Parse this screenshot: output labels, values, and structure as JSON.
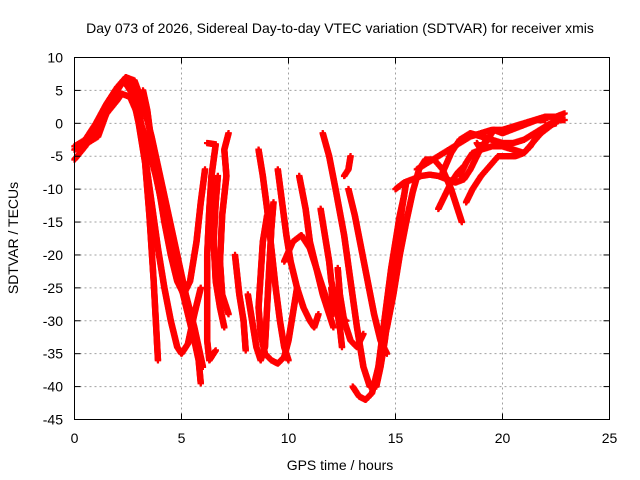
{
  "chart_data": {
    "type": "scatter",
    "title": "Day 073 of 2026, Sidereal Day-to-day VTEC variation (SDTVAR) for receiver xmis",
    "xlabel": "GPS time / hours",
    "ylabel": "SDTVAR / TECUs",
    "xlim": [
      0,
      25
    ],
    "ylim": [
      -45,
      10
    ],
    "xticks": [
      0,
      5,
      10,
      15,
      20,
      25
    ],
    "yticks": [
      -45,
      -40,
      -35,
      -30,
      -25,
      -20,
      -15,
      -10,
      -5,
      0,
      5,
      10
    ],
    "grid": true,
    "marker": "plus",
    "color": "#ff0000",
    "series": [
      {
        "points": [
          [
            0.0,
            -3.5
          ],
          [
            0.5,
            -2.5
          ],
          [
            1.0,
            0.0
          ],
          [
            1.5,
            3.0
          ],
          [
            2.0,
            5.5
          ],
          [
            2.4,
            7.0
          ],
          [
            2.8,
            6.5
          ],
          [
            3.2,
            3.0
          ],
          [
            3.6,
            -2.0
          ],
          [
            4.0,
            -8.0
          ],
          [
            4.4,
            -14.0
          ],
          [
            4.8,
            -20.0
          ],
          [
            5.2,
            -26.0
          ],
          [
            5.6,
            -31.0
          ],
          [
            5.8,
            -34.0
          ],
          [
            6.0,
            -37.0
          ]
        ]
      },
      {
        "points": [
          [
            0.0,
            -5.5
          ],
          [
            0.5,
            -3.5
          ],
          [
            1.0,
            -1.0
          ],
          [
            1.5,
            1.5
          ],
          [
            2.0,
            3.5
          ],
          [
            2.2,
            4.5
          ],
          [
            2.6,
            4.0
          ],
          [
            3.0,
            1.0
          ],
          [
            3.4,
            -3.0
          ],
          [
            3.8,
            -8.0
          ],
          [
            4.2,
            -14.0
          ],
          [
            4.6,
            -20.0
          ],
          [
            5.0,
            -25.0
          ],
          [
            5.3,
            -29.0
          ],
          [
            5.6,
            -33.0
          ],
          [
            5.8,
            -36.0
          ],
          [
            5.9,
            -39.5
          ]
        ]
      },
      {
        "points": [
          [
            0.0,
            -4.0
          ],
          [
            0.6,
            -3.0
          ],
          [
            1.1,
            -2.0
          ],
          [
            1.6,
            2.5
          ],
          [
            2.0,
            5.0
          ],
          [
            2.3,
            6.5
          ],
          [
            2.7,
            4.5
          ],
          [
            3.0,
            0.0
          ],
          [
            3.3,
            -6.0
          ],
          [
            3.5,
            -14.0
          ],
          [
            3.7,
            -24.0
          ],
          [
            3.8,
            -30.0
          ],
          [
            3.9,
            -36.0
          ]
        ]
      },
      {
        "points": [
          [
            2.6,
            6.5
          ],
          [
            2.9,
            5.0
          ],
          [
            3.1,
            0.0
          ],
          [
            3.3,
            -5.0
          ],
          [
            3.6,
            -12.0
          ],
          [
            3.9,
            -19.0
          ],
          [
            4.2,
            -25.0
          ],
          [
            4.5,
            -30.0
          ],
          [
            4.8,
            -34.0
          ],
          [
            5.0,
            -35.0
          ],
          [
            5.3,
            -33.5
          ],
          [
            5.6,
            -29.0
          ],
          [
            5.9,
            -25.0
          ]
        ]
      },
      {
        "points": [
          [
            3.2,
            5.0
          ],
          [
            3.4,
            2.0
          ],
          [
            3.6,
            -3.0
          ],
          [
            3.9,
            -9.0
          ],
          [
            4.2,
            -15.0
          ],
          [
            4.5,
            -20.0
          ],
          [
            4.8,
            -24.0
          ],
          [
            5.1,
            -26.0
          ],
          [
            5.4,
            -24.0
          ],
          [
            5.7,
            -18.0
          ],
          [
            5.9,
            -12.0
          ],
          [
            6.1,
            -7.0
          ]
        ]
      },
      {
        "points": [
          [
            6.2,
            -3.0
          ],
          [
            6.6,
            -3.2
          ],
          [
            6.4,
            -8.0
          ],
          [
            6.3,
            -13.0
          ],
          [
            6.2,
            -20.0
          ],
          [
            6.2,
            -27.0
          ],
          [
            6.2,
            -33.0
          ],
          [
            6.3,
            -36.0
          ],
          [
            6.6,
            -34.5
          ]
        ]
      },
      {
        "points": [
          [
            6.7,
            -8.0
          ],
          [
            6.6,
            -12.0
          ],
          [
            6.5,
            -18.0
          ],
          [
            6.6,
            -24.0
          ],
          [
            6.8,
            -28.0
          ],
          [
            7.0,
            -31.0
          ]
        ]
      },
      {
        "points": [
          [
            7.2,
            -1.5
          ],
          [
            7.0,
            -4.0
          ],
          [
            7.1,
            -8.0
          ],
          [
            6.9,
            -14.0
          ],
          [
            6.8,
            -21.0
          ],
          [
            6.9,
            -26.0
          ],
          [
            7.2,
            -29.0
          ]
        ]
      },
      {
        "points": [
          [
            7.5,
            -20.0
          ],
          [
            7.7,
            -26.0
          ],
          [
            7.9,
            -30.0
          ],
          [
            8.0,
            -34.5
          ]
        ]
      },
      {
        "points": [
          [
            8.1,
            -26.0
          ],
          [
            8.3,
            -30.0
          ],
          [
            8.5,
            -34.0
          ],
          [
            8.7,
            -36.0
          ],
          [
            8.9,
            -34.0
          ],
          [
            9.0,
            -28.0
          ],
          [
            9.1,
            -22.0
          ],
          [
            9.2,
            -16.0
          ],
          [
            9.3,
            -12.0
          ]
        ]
      },
      {
        "points": [
          [
            9.0,
            -14.0
          ],
          [
            8.8,
            -18.0
          ],
          [
            8.7,
            -23.0
          ],
          [
            8.6,
            -28.0
          ],
          [
            8.7,
            -32.0
          ],
          [
            8.9,
            -35.0
          ],
          [
            9.2,
            -36.0
          ],
          [
            9.5,
            -36.5
          ],
          [
            9.8,
            -35.5
          ],
          [
            10.0,
            -33.0
          ],
          [
            10.2,
            -29.0
          ],
          [
            10.4,
            -25.0
          ]
        ]
      },
      {
        "points": [
          [
            8.6,
            -4.0
          ],
          [
            8.8,
            -8.0
          ],
          [
            9.0,
            -13.0
          ],
          [
            9.2,
            -19.0
          ],
          [
            9.4,
            -25.0
          ],
          [
            9.6,
            -30.0
          ],
          [
            9.8,
            -34.0
          ],
          [
            10.0,
            -36.0
          ]
        ]
      },
      {
        "points": [
          [
            9.5,
            -7.0
          ],
          [
            9.7,
            -12.0
          ],
          [
            9.9,
            -17.0
          ],
          [
            10.1,
            -21.0
          ],
          [
            10.4,
            -25.0
          ],
          [
            10.7,
            -28.0
          ],
          [
            11.0,
            -30.0
          ],
          [
            11.2,
            -31.0
          ],
          [
            11.4,
            -29.0
          ]
        ]
      },
      {
        "points": [
          [
            9.8,
            -21.0
          ],
          [
            10.2,
            -18.0
          ],
          [
            10.6,
            -17.0
          ],
          [
            11.0,
            -19.0
          ],
          [
            11.4,
            -23.0
          ],
          [
            11.8,
            -27.0
          ],
          [
            12.1,
            -29.0
          ]
        ]
      },
      {
        "points": [
          [
            10.5,
            -8.0
          ],
          [
            10.8,
            -13.0
          ],
          [
            11.0,
            -18.0
          ],
          [
            11.3,
            -22.0
          ],
          [
            11.6,
            -26.0
          ],
          [
            11.9,
            -29.0
          ],
          [
            12.1,
            -31.0
          ]
        ]
      },
      {
        "points": [
          [
            11.5,
            -13.0
          ],
          [
            11.7,
            -17.0
          ],
          [
            11.9,
            -21.0
          ],
          [
            12.0,
            -24.0
          ],
          [
            12.2,
            -27.0
          ],
          [
            12.4,
            -31.0
          ],
          [
            12.5,
            -34.0
          ]
        ]
      },
      {
        "points": [
          [
            11.6,
            -1.5
          ],
          [
            11.9,
            -5.0
          ],
          [
            12.2,
            -10.0
          ],
          [
            12.6,
            -17.0
          ],
          [
            12.9,
            -24.0
          ],
          [
            13.2,
            -31.0
          ],
          [
            13.5,
            -37.0
          ],
          [
            13.8,
            -40.0
          ],
          [
            14.1,
            -40.0
          ],
          [
            14.3,
            -37.0
          ],
          [
            14.5,
            -33.0
          ],
          [
            14.7,
            -28.0
          ],
          [
            14.9,
            -23.0
          ],
          [
            15.1,
            -18.0
          ],
          [
            15.3,
            -13.0
          ],
          [
            15.5,
            -9.0
          ]
        ]
      },
      {
        "points": [
          [
            12.8,
            -10.0
          ],
          [
            13.1,
            -14.0
          ],
          [
            13.4,
            -19.0
          ],
          [
            13.7,
            -24.0
          ],
          [
            14.0,
            -29.0
          ],
          [
            14.3,
            -33.0
          ],
          [
            14.6,
            -35.0
          ]
        ]
      },
      {
        "points": [
          [
            12.3,
            -22.0
          ],
          [
            12.4,
            -26.0
          ],
          [
            12.6,
            -30.0
          ],
          [
            12.9,
            -33.0
          ],
          [
            13.2,
            -34.0
          ],
          [
            13.5,
            -32.0
          ]
        ]
      },
      {
        "points": [
          [
            12.6,
            -8.0
          ],
          [
            12.8,
            -7.0
          ],
          [
            12.9,
            -5.0
          ]
        ]
      },
      {
        "points": [
          [
            12.0,
            -25.0
          ],
          [
            12.1,
            -28.0
          ],
          [
            12.4,
            -29.5
          ],
          [
            12.7,
            -30.0
          ]
        ]
      },
      {
        "points": [
          [
            14.3,
            -35.0
          ],
          [
            14.6,
            -31.0
          ],
          [
            14.9,
            -26.0
          ],
          [
            15.2,
            -20.0
          ],
          [
            15.5,
            -15.0
          ],
          [
            15.8,
            -10.5
          ],
          [
            16.1,
            -7.0
          ],
          [
            16.4,
            -5.5
          ],
          [
            16.8,
            -5.5
          ],
          [
            17.2,
            -7.0
          ],
          [
            17.6,
            -10.0
          ],
          [
            17.9,
            -13.0
          ],
          [
            18.1,
            -15.0
          ]
        ]
      },
      {
        "points": [
          [
            13.0,
            -40.0
          ],
          [
            13.3,
            -41.5
          ],
          [
            13.6,
            -42.0
          ],
          [
            13.9,
            -41.0
          ],
          [
            14.2,
            -37.0
          ],
          [
            14.4,
            -32.0
          ],
          [
            14.6,
            -27.0
          ],
          [
            14.8,
            -22.0
          ],
          [
            15.0,
            -18.0
          ],
          [
            15.2,
            -14.0
          ],
          [
            15.4,
            -11.0
          ]
        ]
      },
      {
        "points": [
          [
            15.0,
            -10.0
          ],
          [
            15.4,
            -9.0
          ],
          [
            15.8,
            -8.5
          ],
          [
            16.2,
            -8.0
          ],
          [
            16.6,
            -7.8
          ],
          [
            17.0,
            -8.0
          ],
          [
            17.4,
            -8.5
          ],
          [
            17.8,
            -9.0
          ],
          [
            18.2,
            -8.5
          ],
          [
            18.5,
            -7.0
          ],
          [
            18.8,
            -5.0
          ],
          [
            19.1,
            -3.0
          ]
        ]
      },
      {
        "points": [
          [
            16.0,
            -7.0
          ],
          [
            16.5,
            -6.0
          ],
          [
            17.0,
            -5.0
          ],
          [
            17.5,
            -4.0
          ],
          [
            18.0,
            -3.0
          ],
          [
            18.5,
            -2.0
          ],
          [
            19.0,
            -1.5
          ],
          [
            19.5,
            -1.0
          ],
          [
            20.0,
            -1.0
          ],
          [
            20.5,
            -0.5
          ],
          [
            21.0,
            0.0
          ],
          [
            21.5,
            0.5
          ],
          [
            22.0,
            1.0
          ],
          [
            22.5,
            1.0
          ],
          [
            22.9,
            1.5
          ]
        ]
      },
      {
        "points": [
          [
            17.2,
            -7.5
          ],
          [
            17.6,
            -4.5
          ],
          [
            18.0,
            -2.5
          ],
          [
            18.5,
            -1.5
          ],
          [
            19.0,
            -2.0
          ],
          [
            19.5,
            -2.5
          ],
          [
            20.0,
            -3.0
          ],
          [
            20.5,
            -3.0
          ],
          [
            21.0,
            -2.5
          ],
          [
            21.5,
            -1.5
          ],
          [
            22.0,
            -0.5
          ],
          [
            22.5,
            0.5
          ],
          [
            22.9,
            0.5
          ]
        ]
      },
      {
        "points": [
          [
            18.0,
            -8.0
          ],
          [
            18.3,
            -6.0
          ],
          [
            18.6,
            -4.5
          ],
          [
            19.0,
            -4.0
          ],
          [
            19.5,
            -3.5
          ],
          [
            20.0,
            -3.5
          ],
          [
            20.5,
            -4.0
          ],
          [
            21.0,
            -4.5
          ],
          [
            21.3,
            -3.5
          ],
          [
            21.6,
            -2.0
          ],
          [
            22.0,
            -0.5
          ],
          [
            22.5,
            0.0
          ]
        ]
      },
      {
        "points": [
          [
            18.3,
            -12.0
          ],
          [
            18.6,
            -10.0
          ],
          [
            19.0,
            -8.0
          ],
          [
            19.4,
            -6.5
          ],
          [
            19.8,
            -5.0
          ],
          [
            20.2,
            -5.0
          ],
          [
            20.6,
            -5.0
          ],
          [
            21.0,
            -4.5
          ],
          [
            21.4,
            -3.0
          ],
          [
            21.8,
            -1.5
          ],
          [
            22.2,
            -0.5
          ],
          [
            22.6,
            0.5
          ]
        ]
      },
      {
        "points": [
          [
            18.8,
            -3.0
          ],
          [
            19.0,
            -4.0
          ],
          [
            19.3,
            -2.5
          ],
          [
            19.6,
            -1.0
          ],
          [
            20.0,
            -1.5
          ],
          [
            20.4,
            -1.0
          ],
          [
            20.8,
            -0.5
          ],
          [
            21.2,
            0.0
          ],
          [
            21.6,
            0.5
          ],
          [
            22.0,
            0.5
          ]
        ]
      },
      {
        "points": [
          [
            17.0,
            -13.0
          ],
          [
            17.3,
            -11.0
          ],
          [
            17.6,
            -9.0
          ],
          [
            17.9,
            -7.5
          ],
          [
            18.2,
            -6.5
          ]
        ]
      }
    ]
  }
}
